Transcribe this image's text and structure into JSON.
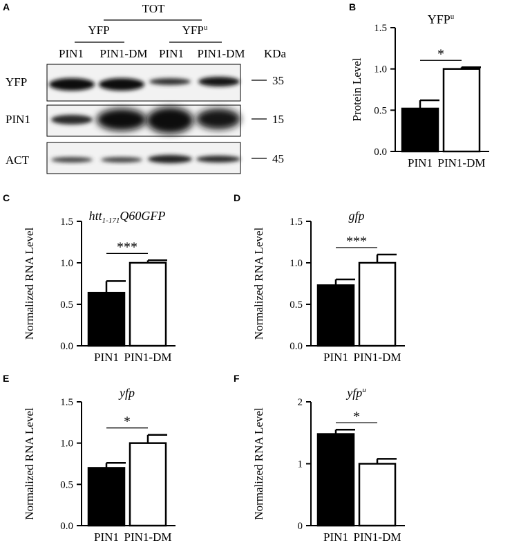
{
  "panel_a": {
    "letter": "A",
    "tot_label": "TOT",
    "group_yfp": "YFP",
    "group_yfpu_main": "YFP",
    "group_yfpu_sup": "u",
    "lanes": [
      "PIN1",
      "PIN1-DM",
      "PIN1",
      "PIN1-DM"
    ],
    "kda_label": "KDa",
    "blots": [
      {
        "label": "YFP",
        "marker": "35"
      },
      {
        "label": "PIN1",
        "marker": "15"
      },
      {
        "label": "ACT",
        "marker": "45"
      }
    ]
  },
  "chart_data": [
    {
      "panel": "B",
      "type": "bar",
      "title": "YFP",
      "title_sup": "u",
      "ylabel": "Protein Level",
      "categories": [
        "PIN1",
        "PIN1-DM"
      ],
      "values": [
        0.52,
        1.0
      ],
      "errors": [
        0.1,
        0.02
      ],
      "bar_colors": [
        "#000000",
        "#ffffff"
      ],
      "ylim": [
        0,
        1.5
      ],
      "yticks": [
        "0.0",
        "0.5",
        "1.0",
        "1.5"
      ],
      "significance": "*"
    },
    {
      "panel": "C",
      "type": "bar",
      "title": "htt",
      "title_sub": "1-171",
      "title_rest": "Q60GFP",
      "ylabel": "Normalized RNA Level",
      "categories": [
        "PIN1",
        "PIN1-DM"
      ],
      "values": [
        0.64,
        1.0
      ],
      "errors": [
        0.14,
        0.03
      ],
      "bar_colors": [
        "#000000",
        "#ffffff"
      ],
      "ylim": [
        0,
        1.5
      ],
      "yticks": [
        "0.0",
        "0.5",
        "1.0",
        "1.5"
      ],
      "significance": "***"
    },
    {
      "panel": "D",
      "type": "bar",
      "title": "gfp",
      "ylabel": "Normalized RNA Level",
      "categories": [
        "PIN1",
        "PIN1-DM"
      ],
      "values": [
        0.73,
        1.0
      ],
      "errors": [
        0.07,
        0.1
      ],
      "bar_colors": [
        "#000000",
        "#ffffff"
      ],
      "ylim": [
        0,
        1.5
      ],
      "yticks": [
        "0.0",
        "0.5",
        "1.0",
        "1.5"
      ],
      "significance": "***"
    },
    {
      "panel": "E",
      "type": "bar",
      "title": "yfp",
      "ylabel": "Normalized RNA Level",
      "categories": [
        "PIN1",
        "PIN1-DM"
      ],
      "values": [
        0.7,
        1.0
      ],
      "errors": [
        0.06,
        0.1
      ],
      "bar_colors": [
        "#000000",
        "#ffffff"
      ],
      "ylim": [
        0,
        1.5
      ],
      "yticks": [
        "0.0",
        "0.5",
        "1.0",
        "1.5"
      ],
      "significance": "*"
    },
    {
      "panel": "F",
      "type": "bar",
      "title": "yfp",
      "title_sup": "u",
      "ylabel": "Normalized RNA Level",
      "categories": [
        "PIN1",
        "PIN1-DM"
      ],
      "values": [
        1.48,
        1.0
      ],
      "errors": [
        0.07,
        0.08
      ],
      "bar_colors": [
        "#000000",
        "#ffffff"
      ],
      "ylim": [
        0,
        2
      ],
      "yticks": [
        "0",
        "1",
        "2"
      ],
      "significance": "*"
    }
  ]
}
